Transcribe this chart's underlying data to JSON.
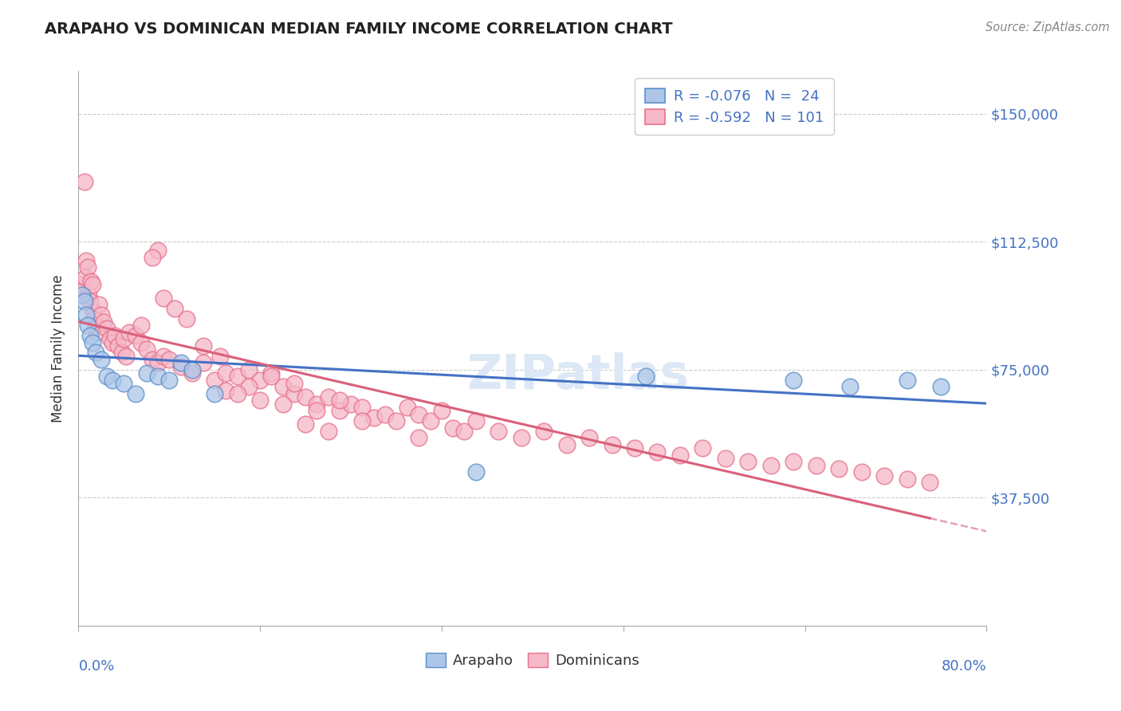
{
  "title": "ARAPAHO VS DOMINICAN MEDIAN FAMILY INCOME CORRELATION CHART",
  "source": "Source: ZipAtlas.com",
  "ylabel": "Median Family Income",
  "yticks": [
    0,
    37500,
    75000,
    112500,
    150000
  ],
  "ytick_labels": [
    "",
    "$37,500",
    "$75,000",
    "$112,500",
    "$150,000"
  ],
  "xlim": [
    0.0,
    80.0
  ],
  "ylim": [
    0,
    162500
  ],
  "arapaho_R": -0.076,
  "arapaho_N": 24,
  "dominican_R": -0.592,
  "dominican_N": 101,
  "arapaho_color": "#adc6e8",
  "dominican_color": "#f5b8c8",
  "arapaho_edge_color": "#5b8fc9",
  "dominican_edge_color": "#e8708a",
  "arapaho_line_color": "#4472c4",
  "dominican_line_color": "#d9607a",
  "grid_color": "#cccccc",
  "title_color": "#222222",
  "source_color": "#888888",
  "label_color": "#333333",
  "axis_color": "#aaaaaa",
  "ytick_color": "#4472c4",
  "xtick_color": "#4472c4",
  "watermark_color": "#dce8f5",
  "arapaho_x": [
    0.3,
    0.5,
    0.7,
    0.8,
    1.0,
    1.2,
    1.5,
    2.0,
    2.5,
    3.0,
    4.0,
    5.0,
    6.0,
    7.0,
    8.0,
    9.0,
    10.0,
    12.0,
    35.0,
    50.0,
    63.0,
    68.0,
    73.0,
    76.0
  ],
  "arapaho_y": [
    97000,
    95000,
    91000,
    88000,
    85000,
    83000,
    80000,
    78000,
    73000,
    72000,
    71000,
    68000,
    74000,
    73000,
    72000,
    77000,
    75000,
    68000,
    45000,
    73000,
    72000,
    70000,
    72000,
    70000
  ],
  "dominican_x": [
    0.3,
    0.4,
    0.5,
    0.6,
    0.7,
    0.8,
    0.9,
    1.0,
    1.1,
    1.2,
    1.3,
    1.4,
    1.5,
    1.6,
    1.8,
    2.0,
    2.2,
    2.5,
    2.8,
    3.0,
    3.2,
    3.5,
    3.8,
    4.0,
    4.2,
    4.5,
    5.0,
    5.5,
    6.0,
    6.5,
    7.0,
    7.5,
    8.0,
    9.0,
    10.0,
    11.0,
    12.0,
    13.0,
    14.0,
    15.0,
    16.0,
    17.0,
    18.0,
    19.0,
    20.0,
    21.0,
    22.0,
    23.0,
    24.0,
    25.0,
    26.0,
    27.0,
    28.0,
    29.0,
    30.0,
    31.0,
    32.0,
    33.0,
    34.0,
    35.0,
    37.0,
    39.0,
    41.0,
    43.0,
    45.0,
    47.0,
    49.0,
    51.0,
    53.0,
    55.0,
    57.0,
    59.0,
    61.0,
    63.0,
    65.0,
    67.0,
    69.0,
    71.0,
    73.0,
    75.0,
    13.0,
    15.0,
    17.0,
    19.0,
    21.0,
    23.0,
    25.0,
    20.0,
    22.0,
    14.0,
    16.0,
    18.0,
    30.0,
    7.0,
    6.5,
    7.5,
    8.5,
    9.5,
    5.5,
    11.0,
    12.5
  ],
  "dominican_y": [
    100000,
    98000,
    130000,
    102000,
    107000,
    105000,
    97000,
    95000,
    101000,
    100000,
    92000,
    90000,
    88000,
    86000,
    94000,
    91000,
    89000,
    87000,
    84000,
    83000,
    85000,
    82000,
    80000,
    84000,
    79000,
    86000,
    85000,
    83000,
    81000,
    78000,
    77000,
    79000,
    78000,
    76000,
    74000,
    77000,
    72000,
    74000,
    73000,
    75000,
    72000,
    74000,
    70000,
    68000,
    67000,
    65000,
    67000,
    63000,
    65000,
    64000,
    61000,
    62000,
    60000,
    64000,
    62000,
    60000,
    63000,
    58000,
    57000,
    60000,
    57000,
    55000,
    57000,
    53000,
    55000,
    53000,
    52000,
    51000,
    50000,
    52000,
    49000,
    48000,
    47000,
    48000,
    47000,
    46000,
    45000,
    44000,
    43000,
    42000,
    69000,
    70000,
    73000,
    71000,
    63000,
    66000,
    60000,
    59000,
    57000,
    68000,
    66000,
    65000,
    55000,
    110000,
    108000,
    96000,
    93000,
    90000,
    88000,
    82000,
    79000
  ]
}
